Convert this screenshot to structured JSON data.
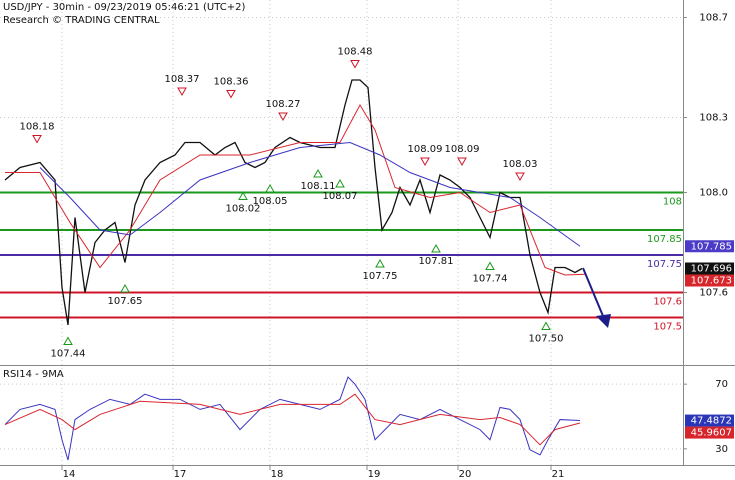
{
  "chart_data": [
    {
      "type": "line",
      "title": "USD/JPY - 30min - 09/23/2019 05:46:21 (UTC+2)",
      "subtitle": "Research © TRADING CENTRAL",
      "xlim": [
        -15.5,
        155.25
      ],
      "ylim": [
        107.31,
        108.77
      ],
      "yticks": [
        107.6,
        {
          "value": 108,
          "label": "108.0"
        },
        108.3,
        108.7
      ],
      "grid": true,
      "series": [
        {
          "color": "#111111",
          "x": [
            -14.25,
            -10.5,
            -5.5,
            -1.75,
            0,
            1.5,
            3.25,
            5.75,
            8.25,
            10.75,
            13.25,
            15.75,
            18.25,
            20.75,
            24.5,
            28.25,
            30.75,
            34.5,
            38.25,
            40.75,
            43.25,
            45.75,
            48.25,
            50.75,
            53.25,
            57,
            59.5,
            64.5,
            68.25,
            70.75,
            72.5,
            74.5,
            76.5,
            78.25,
            80,
            82.5,
            84.5,
            87,
            89.5,
            92,
            94.5,
            97,
            99.5,
            102,
            104.5,
            107,
            109.5,
            112,
            114.5,
            117,
            119.5,
            121.5,
            123.25,
            125.75,
            128.25,
            130
          ],
          "values": [
            108.05,
            108.1,
            108.12,
            108.05,
            107.62,
            107.47,
            107.9,
            107.6,
            107.8,
            107.85,
            107.88,
            107.72,
            107.95,
            108.05,
            108.12,
            108.15,
            108.2,
            108.2,
            108.15,
            108.18,
            108.2,
            108.12,
            108.1,
            108.12,
            108.18,
            108.22,
            108.2,
            108.18,
            108.18,
            108.35,
            108.45,
            108.45,
            108.42,
            108.1,
            107.85,
            107.92,
            108.02,
            107.95,
            108.05,
            107.92,
            108.07,
            108.05,
            108.02,
            107.98,
            107.9,
            107.82,
            108,
            107.98,
            107.98,
            107.75,
            107.6,
            107.52,
            107.7,
            107.7,
            107.68,
            107.696
          ]
        },
        {
          "color": "#d9262e",
          "x": [
            -14.25,
            -5.5,
            2,
            9.5,
            17,
            24.5,
            34.5,
            47,
            59.5,
            69.5,
            74.5,
            78.25,
            83.25,
            92,
            99.5,
            107,
            114.5,
            120.75,
            125.75,
            130.75
          ],
          "values": [
            108.08,
            108.08,
            107.88,
            107.7,
            107.85,
            108.05,
            108.15,
            108.15,
            108.2,
            108.2,
            108.35,
            108.25,
            108.02,
            107.98,
            108,
            107.92,
            107.95,
            107.7,
            107.67,
            107.673
          ]
        },
        {
          "color": "#3a34c0",
          "x": [
            -5.5,
            2,
            9.5,
            17,
            24.5,
            34.5,
            47,
            59.5,
            72,
            79.5,
            87,
            97,
            104.5,
            112,
            119.5,
            129.5
          ],
          "values": [
            108.1,
            107.98,
            107.85,
            107.83,
            107.92,
            108.05,
            108.12,
            108.18,
            108.2,
            108.15,
            108.08,
            108.02,
            108,
            107.98,
            107.9,
            107.785
          ]
        }
      ],
      "levels": [
        {
          "value": 108,
          "label": "108",
          "color": "#1a9a1a"
        },
        {
          "value": 107.85,
          "label": "107.85",
          "color": "#1a9a1a"
        },
        {
          "value": 107.75,
          "label": "107.75",
          "color": "#4b2aa8"
        },
        {
          "value": 107.6,
          "label": "107.6",
          "color": "#d01427"
        },
        {
          "value": 107.5,
          "label": "107.5",
          "color": "#d01427"
        }
      ],
      "highs": [
        {
          "x": -6.25,
          "value": 108.18
        },
        {
          "x": 30,
          "value": 108.37
        },
        {
          "x": 42.25,
          "value": 108.36
        },
        {
          "x": 55.25,
          "value": 108.27
        },
        {
          "x": 73.25,
          "value": 108.48
        },
        {
          "x": 90.75,
          "value": 108.09
        },
        {
          "x": 100,
          "value": 108.09
        },
        {
          "x": 114.5,
          "value": 108.03
        }
      ],
      "lows": [
        {
          "x": 1.5,
          "value": 107.44
        },
        {
          "x": 15.75,
          "value": 107.65
        },
        {
          "x": 45.25,
          "value": 108.02
        },
        {
          "x": 52,
          "value": 108.05
        },
        {
          "x": 64,
          "value": 108.11
        },
        {
          "x": 69.5,
          "value": 108.07
        },
        {
          "x": 79.5,
          "value": 107.75
        },
        {
          "x": 93.5,
          "value": 107.81
        },
        {
          "x": 107,
          "value": 107.74
        },
        {
          "x": 121,
          "value": 107.5,
          "label": "107.50"
        }
      ],
      "last_values": [
        {
          "value": 107.785,
          "color": "#4b3bc7"
        },
        {
          "value": 107.696,
          "color": "#111111"
        },
        {
          "value": 107.673,
          "color": "#d7252c"
        }
      ]
    },
    {
      "type": "line",
      "title": "RSI14 - 9MA",
      "xlim": [
        -15.5,
        155.25
      ],
      "ylim": [
        20,
        80
      ],
      "yticks": [
        30,
        70
      ],
      "xticks": [
        {
          "value": 0,
          "label": "14"
        },
        {
          "value": 27.75,
          "label": "17"
        },
        {
          "value": 52,
          "label": "18"
        },
        {
          "value": 76.25,
          "label": "19"
        },
        {
          "value": 99,
          "label": "20"
        },
        {
          "value": 122.25,
          "label": "21"
        }
      ],
      "grid": true,
      "series": [
        {
          "color": "#3a34c0",
          "x": [
            -14.25,
            -10.5,
            -5.5,
            -1.75,
            0,
            1.5,
            3.25,
            7,
            12,
            17,
            20.75,
            24.5,
            29.5,
            34.5,
            39.5,
            44.5,
            49.5,
            54.5,
            59.5,
            64.5,
            69.5,
            71.5,
            73.25,
            75.75,
            78.25,
            80.75,
            84.5,
            89.5,
            94.5,
            99.5,
            104.5,
            107,
            109.5,
            112,
            114.5,
            117,
            119.5,
            121.5,
            124.5,
            129.5
          ],
          "values": [
            45,
            54.4,
            57.5,
            54.4,
            35.6,
            23.1,
            48.1,
            54.4,
            60.6,
            57.5,
            63.8,
            60.6,
            60.6,
            54.4,
            57.5,
            41.9,
            54.4,
            60.6,
            57.5,
            54.4,
            60.6,
            74.4,
            70,
            60.6,
            35.6,
            41.9,
            51.3,
            48.1,
            54.4,
            48.1,
            41.9,
            35.6,
            55.6,
            54.4,
            48.1,
            29.4,
            26.3,
            35.6,
            48.1,
            47.4872
          ]
        },
        {
          "color": "#d9262e",
          "x": [
            -14.25,
            -5.5,
            0,
            3.25,
            9.5,
            19.5,
            34.5,
            44.5,
            54.5,
            69.5,
            73.25,
            78.25,
            84.5,
            94.5,
            104.5,
            109.5,
            114.5,
            119.5,
            123.25,
            129.5
          ],
          "values": [
            45,
            54.4,
            48.1,
            41.9,
            51.3,
            59.4,
            57.5,
            51.3,
            57.5,
            57.5,
            63.8,
            48.1,
            45,
            51.3,
            48.1,
            49.4,
            45,
            32.5,
            41.9,
            45.9607
          ]
        }
      ],
      "last_values": [
        {
          "value": 47.4872,
          "color": "#2a36b8"
        },
        {
          "value": 45.9607,
          "color": "#d7252c"
        }
      ]
    }
  ]
}
